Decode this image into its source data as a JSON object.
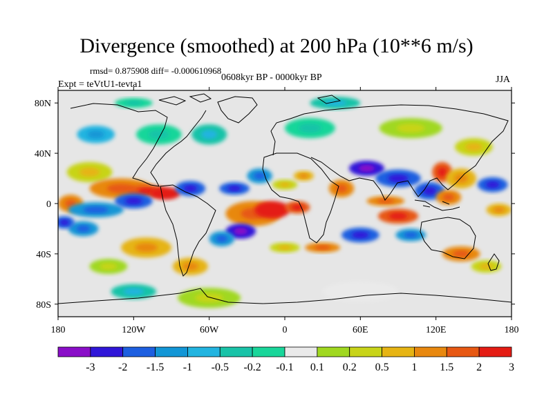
{
  "title": "Divergence (smoothed) at 200 hPa (10**6 m/s)",
  "stats_line": "rmsd= 0.875908 diff= -0.000610968",
  "period_line": "0608kyr BP - 0000kyr BP",
  "experiment_line": "Expt = teVtU1-tevta1",
  "season": "JJA",
  "map": {
    "projection": "cylindrical equidistant",
    "lon_range": [
      -180,
      180
    ],
    "lat_range": [
      -90,
      90
    ],
    "y_ticks": [
      {
        "value": 80,
        "label": "80N"
      },
      {
        "value": 40,
        "label": "40N"
      },
      {
        "value": 0,
        "label": "0"
      },
      {
        "value": -40,
        "label": "40S"
      },
      {
        "value": -80,
        "label": "80S"
      }
    ],
    "x_ticks": [
      {
        "value": -180,
        "label": "180"
      },
      {
        "value": -120,
        "label": "120W"
      },
      {
        "value": -60,
        "label": "60W"
      },
      {
        "value": 0,
        "label": "0"
      },
      {
        "value": 60,
        "label": "60E"
      },
      {
        "value": 120,
        "label": "120E"
      },
      {
        "value": 180,
        "label": "180"
      }
    ],
    "background_color": "#e6e6e6",
    "blobs": [
      {
        "lon": -155,
        "lat": 25,
        "rx": 18,
        "ry": 8,
        "level": 9
      },
      {
        "lon": -130,
        "lat": 12,
        "rx": 25,
        "ry": 8,
        "level": 11
      },
      {
        "lon": -110,
        "lat": 10,
        "rx": 15,
        "ry": 5,
        "level": 12
      },
      {
        "lon": -95,
        "lat": 8,
        "rx": 12,
        "ry": 5,
        "level": 13
      },
      {
        "lon": -170,
        "lat": 0,
        "rx": 10,
        "ry": 7,
        "level": 11
      },
      {
        "lon": -150,
        "lat": -5,
        "rx": 22,
        "ry": 6,
        "level": 3
      },
      {
        "lon": -120,
        "lat": 2,
        "rx": 15,
        "ry": 6,
        "level": 2
      },
      {
        "lon": -75,
        "lat": 12,
        "rx": 12,
        "ry": 6,
        "level": 2
      },
      {
        "lon": -25,
        "lat": -8,
        "rx": 22,
        "ry": 10,
        "level": 11
      },
      {
        "lon": -10,
        "lat": -5,
        "rx": 14,
        "ry": 7,
        "level": 13
      },
      {
        "lon": 10,
        "lat": -3,
        "rx": 10,
        "ry": 5,
        "level": 12
      },
      {
        "lon": -35,
        "lat": -22,
        "rx": 12,
        "ry": 6,
        "level": 1
      },
      {
        "lon": -50,
        "lat": -28,
        "rx": 10,
        "ry": 6,
        "level": 3
      },
      {
        "lon": -40,
        "lat": 12,
        "rx": 12,
        "ry": 5,
        "level": 2
      },
      {
        "lon": -20,
        "lat": 22,
        "rx": 10,
        "ry": 6,
        "level": 3
      },
      {
        "lon": 0,
        "lat": 15,
        "rx": 10,
        "ry": 4,
        "level": 9
      },
      {
        "lon": 15,
        "lat": 22,
        "rx": 8,
        "ry": 4,
        "level": 10
      },
      {
        "lon": 45,
        "lat": 12,
        "rx": 10,
        "ry": 7,
        "level": 11
      },
      {
        "lon": 65,
        "lat": 28,
        "rx": 14,
        "ry": 6,
        "level": 1
      },
      {
        "lon": 90,
        "lat": 20,
        "rx": 18,
        "ry": 7,
        "level": 2
      },
      {
        "lon": 80,
        "lat": 2,
        "rx": 15,
        "ry": 4,
        "level": 11
      },
      {
        "lon": 90,
        "lat": -10,
        "rx": 16,
        "ry": 6,
        "level": 12
      },
      {
        "lon": 115,
        "lat": 10,
        "rx": 12,
        "ry": 7,
        "level": 2
      },
      {
        "lon": 125,
        "lat": 25,
        "rx": 8,
        "ry": 8,
        "level": 12
      },
      {
        "lon": 140,
        "lat": 20,
        "rx": 12,
        "ry": 8,
        "level": 10
      },
      {
        "lon": 130,
        "lat": 5,
        "rx": 10,
        "ry": 6,
        "level": 11
      },
      {
        "lon": 165,
        "lat": 15,
        "rx": 12,
        "ry": 6,
        "level": 2
      },
      {
        "lon": 170,
        "lat": -5,
        "rx": 10,
        "ry": 5,
        "level": 10
      },
      {
        "lon": 60,
        "lat": -25,
        "rx": 15,
        "ry": 6,
        "level": 2
      },
      {
        "lon": 100,
        "lat": -25,
        "rx": 12,
        "ry": 5,
        "level": 3
      },
      {
        "lon": 30,
        "lat": -35,
        "rx": 14,
        "ry": 4,
        "level": 11
      },
      {
        "lon": 0,
        "lat": -35,
        "rx": 12,
        "ry": 4,
        "level": 9
      },
      {
        "lon": -110,
        "lat": -35,
        "rx": 20,
        "ry": 8,
        "level": 10
      },
      {
        "lon": -140,
        "lat": -50,
        "rx": 15,
        "ry": 6,
        "level": 8
      },
      {
        "lon": -160,
        "lat": -20,
        "rx": 12,
        "ry": 6,
        "level": 3
      },
      {
        "lon": -75,
        "lat": -50,
        "rx": 14,
        "ry": 7,
        "level": 10
      },
      {
        "lon": 140,
        "lat": -40,
        "rx": 15,
        "ry": 6,
        "level": 11
      },
      {
        "lon": 160,
        "lat": -50,
        "rx": 12,
        "ry": 5,
        "level": 9
      },
      {
        "lon": -175,
        "lat": -15,
        "rx": 8,
        "ry": 5,
        "level": 2
      },
      {
        "lon": -100,
        "lat": 55,
        "rx": 18,
        "ry": 8,
        "level": 6
      },
      {
        "lon": -60,
        "lat": 55,
        "rx": 14,
        "ry": 8,
        "level": 5
      },
      {
        "lon": 20,
        "lat": 60,
        "rx": 20,
        "ry": 8,
        "level": 6
      },
      {
        "lon": 100,
        "lat": 60,
        "rx": 25,
        "ry": 8,
        "level": 8
      },
      {
        "lon": 150,
        "lat": 45,
        "rx": 15,
        "ry": 7,
        "level": 9
      },
      {
        "lon": -150,
        "lat": 55,
        "rx": 15,
        "ry": 7,
        "level": 4
      },
      {
        "lon": -60,
        "lat": -75,
        "rx": 25,
        "ry": 8,
        "level": 8
      },
      {
        "lon": 60,
        "lat": -70,
        "rx": 30,
        "ry": 8,
        "level": 7
      },
      {
        "lon": -120,
        "lat": -70,
        "rx": 18,
        "ry": 6,
        "level": 5
      },
      {
        "lon": 40,
        "lat": 80,
        "rx": 20,
        "ry": 5,
        "level": 5
      },
      {
        "lon": -120,
        "lat": 80,
        "rx": 15,
        "ry": 4,
        "level": 6
      }
    ]
  },
  "colorbar": {
    "colors": [
      "#8a0ec8",
      "#3016d8",
      "#1d5fe0",
      "#1296d6",
      "#22b4e0",
      "#19c3a8",
      "#19d69a",
      "#eaeaea",
      "#a0d820",
      "#c8d419",
      "#e6b414",
      "#e8880f",
      "#e75813",
      "#e41c14"
    ],
    "labels": [
      "-3",
      "-2",
      "-1.5",
      "-1",
      "-0.5",
      "-0.2",
      "-0.1",
      "0.1",
      "0.2",
      "0.5",
      "1",
      "1.5",
      "2",
      "3"
    ]
  }
}
